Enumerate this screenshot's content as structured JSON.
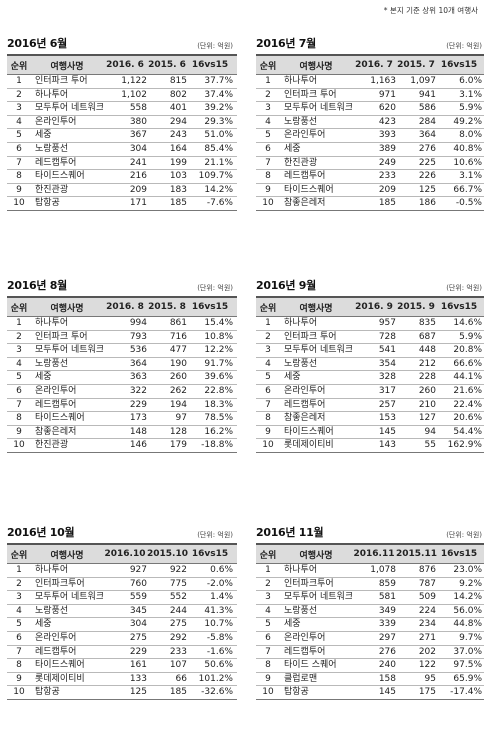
{
  "note": "* 본지 기준 상위 10개 여행사",
  "blocks": [
    {
      "title": "2016년 6월",
      "unit": "(단위: 억원)",
      "headers": [
        "순위",
        "여행사명",
        "2016. 6",
        "2015. 6",
        "16vs15"
      ],
      "rows": [
        [
          "1",
          "인터파크 투어",
          "1,122",
          "815",
          "37.7%"
        ],
        [
          "2",
          "하나투어",
          "1,102",
          "802",
          "37.4%"
        ],
        [
          "3",
          "모두투어 네트워크",
          "558",
          "401",
          "39.2%"
        ],
        [
          "4",
          "온라인투어",
          "380",
          "294",
          "29.3%"
        ],
        [
          "5",
          "세중",
          "367",
          "243",
          "51.0%"
        ],
        [
          "6",
          "노랑풍선",
          "304",
          "164",
          "85.4%"
        ],
        [
          "7",
          "레드캡투어",
          "241",
          "199",
          "21.1%"
        ],
        [
          "8",
          "타이드스퀘어",
          "216",
          "103",
          "109.7%"
        ],
        [
          "9",
          "한진관광",
          "209",
          "183",
          "14.2%"
        ],
        [
          "10",
          "탑항공",
          "171",
          "185",
          "-7.6%"
        ]
      ]
    },
    {
      "title": "2016년 7월",
      "unit": "(단위: 억원)",
      "headers": [
        "순위",
        "여행사명",
        "2016. 7",
        "2015. 7",
        "16vs15"
      ],
      "rows": [
        [
          "1",
          "하나투어",
          "1,163",
          "1,097",
          "6.0%"
        ],
        [
          "2",
          "인터파크 투어",
          "971",
          "941",
          "3.1%"
        ],
        [
          "3",
          "모두투어 네트워크",
          "620",
          "586",
          "5.9%"
        ],
        [
          "4",
          "노랑풍선",
          "423",
          "284",
          "49.2%"
        ],
        [
          "5",
          "온라인투어",
          "393",
          "364",
          "8.0%"
        ],
        [
          "6",
          "세중",
          "389",
          "276",
          "40.8%"
        ],
        [
          "7",
          "한진관광",
          "249",
          "225",
          "10.6%"
        ],
        [
          "8",
          "레드캡투어",
          "233",
          "226",
          "3.1%"
        ],
        [
          "9",
          "타이드스퀘어",
          "209",
          "125",
          "66.7%"
        ],
        [
          "10",
          "참좋은레저",
          "185",
          "186",
          "-0.5%"
        ]
      ]
    },
    {
      "title": "2016년 8월",
      "unit": "(단위: 억원)",
      "headers": [
        "순위",
        "여행사명",
        "2016. 8",
        "2015. 8",
        "16vs15"
      ],
      "rows": [
        [
          "1",
          "하나투어",
          "994",
          "861",
          "15.4%"
        ],
        [
          "2",
          "인터파크 투어",
          "793",
          "716",
          "10.8%"
        ],
        [
          "3",
          "모두투어 네트워크",
          "536",
          "477",
          "12.2%"
        ],
        [
          "4",
          "노랑풍선",
          "364",
          "190",
          "91.7%"
        ],
        [
          "5",
          "세중",
          "363",
          "260",
          "39.6%"
        ],
        [
          "6",
          "온라인투어",
          "322",
          "262",
          "22.8%"
        ],
        [
          "7",
          "레드캡투어",
          "229",
          "194",
          "18.3%"
        ],
        [
          "8",
          "타이드스퀘어",
          "173",
          "97",
          "78.5%"
        ],
        [
          "9",
          "참좋은레저",
          "148",
          "128",
          "16.2%"
        ],
        [
          "10",
          "한진관광",
          "146",
          "179",
          "-18.8%"
        ]
      ]
    },
    {
      "title": "2016년 9월",
      "unit": "(단위: 억원)",
      "headers": [
        "순위",
        "여행사명",
        "2016. 9",
        "2015. 9",
        "16vs15"
      ],
      "rows": [
        [
          "1",
          "하나투어",
          "957",
          "835",
          "14.6%"
        ],
        [
          "2",
          "인터파크 투어",
          "728",
          "687",
          "5.9%"
        ],
        [
          "3",
          "모두투어 네트워크",
          "541",
          "448",
          "20.8%"
        ],
        [
          "4",
          "노랑풍선",
          "354",
          "212",
          "66.6%"
        ],
        [
          "5",
          "세중",
          "328",
          "228",
          "44.1%"
        ],
        [
          "6",
          "온라인투어",
          "317",
          "260",
          "21.6%"
        ],
        [
          "7",
          "레드캡투어",
          "257",
          "210",
          "22.4%"
        ],
        [
          "8",
          "참좋은레저",
          "153",
          "127",
          "20.6%"
        ],
        [
          "9",
          "타이드스퀘어",
          "145",
          "94",
          "54.4%"
        ],
        [
          "10",
          "롯데제이티비",
          "143",
          "55",
          "162.9%"
        ]
      ]
    },
    {
      "title": "2016년 10월",
      "unit": "(단위: 억원)",
      "headers": [
        "순위",
        "여행사명",
        "2016.10",
        "2015.10",
        "16vs15"
      ],
      "rows": [
        [
          "1",
          "하나투어",
          "927",
          "922",
          "0.6%"
        ],
        [
          "2",
          "인터파크투어",
          "760",
          "775",
          "-2.0%"
        ],
        [
          "3",
          "모두투어 네트워크",
          "559",
          "552",
          "1.4%"
        ],
        [
          "4",
          "노랑풍선",
          "345",
          "244",
          "41.3%"
        ],
        [
          "5",
          "세중",
          "304",
          "275",
          "10.7%"
        ],
        [
          "6",
          "온라인투어",
          "275",
          "292",
          "-5.8%"
        ],
        [
          "7",
          "레드캡투어",
          "229",
          "233",
          "-1.6%"
        ],
        [
          "8",
          "타이드스퀘어",
          "161",
          "107",
          "50.6%"
        ],
        [
          "9",
          "롯데제이티비",
          "133",
          "66",
          "101.2%"
        ],
        [
          "10",
          "탑항공",
          "125",
          "185",
          "-32.6%"
        ]
      ]
    },
    {
      "title": "2016년 11월",
      "unit": "(단위: 억원)",
      "headers": [
        "순위",
        "여행사명",
        "2016.11",
        "2015.11",
        "16vs15"
      ],
      "rows": [
        [
          "1",
          "하나투어",
          "1,078",
          "876",
          "23.0%"
        ],
        [
          "2",
          "인터파크투어",
          "859",
          "787",
          "9.2%"
        ],
        [
          "3",
          "모두투어 네트워크",
          "581",
          "509",
          "14.2%"
        ],
        [
          "4",
          "노랑풍선",
          "349",
          "224",
          "56.0%"
        ],
        [
          "5",
          "세중",
          "339",
          "234",
          "44.8%"
        ],
        [
          "6",
          "온라인투어",
          "297",
          "271",
          "9.7%"
        ],
        [
          "7",
          "레드캡투어",
          "276",
          "202",
          "37.0%"
        ],
        [
          "8",
          "타이드 스퀘어",
          "240",
          "122",
          "97.5%"
        ],
        [
          "9",
          "클럽로맨",
          "158",
          "95",
          "65.9%"
        ],
        [
          "10",
          "탑항공",
          "145",
          "175",
          "-17.4%"
        ]
      ]
    }
  ]
}
